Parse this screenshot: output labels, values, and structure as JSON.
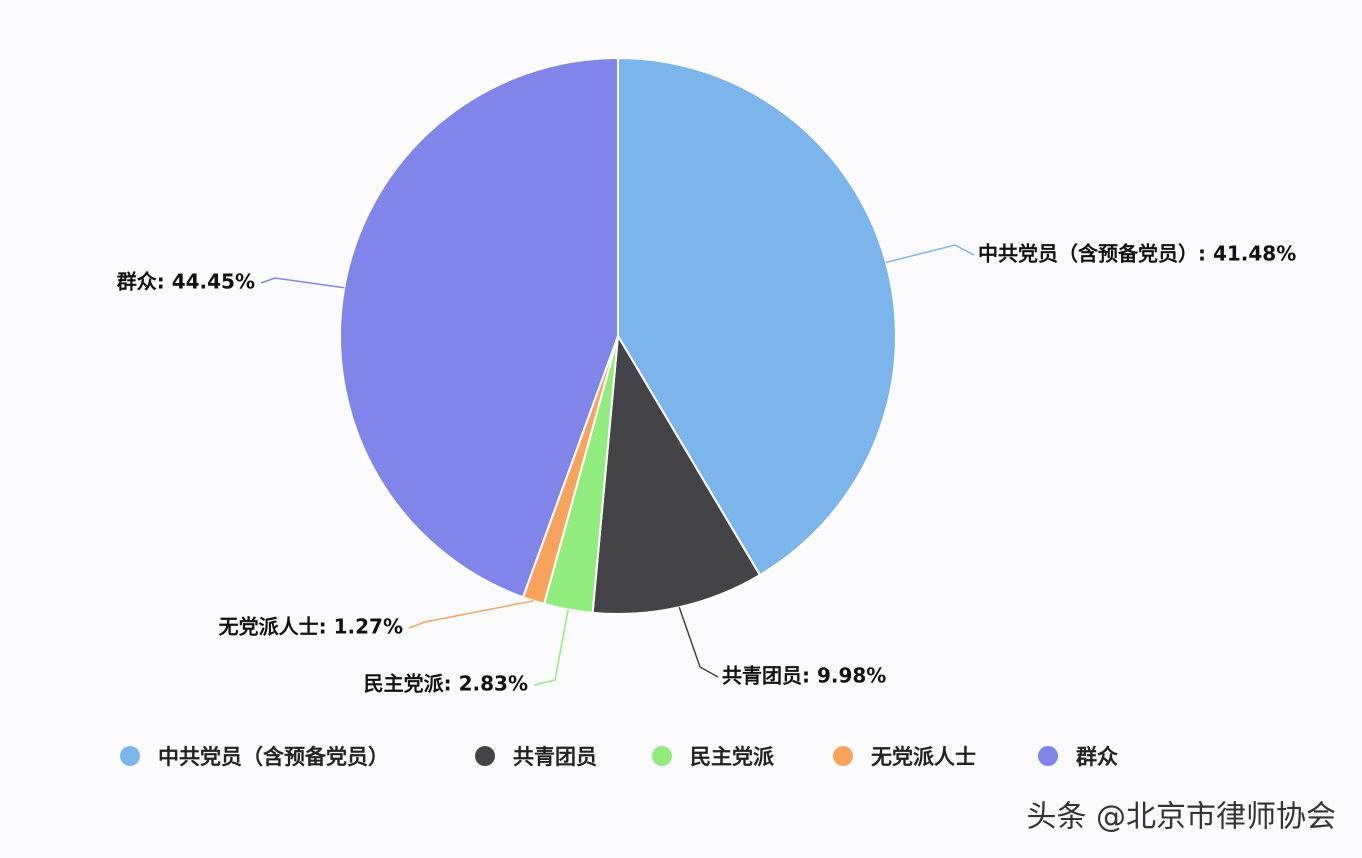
{
  "chart_data": {
    "type": "pie",
    "categories": [
      "中共党员（含预备党员）",
      "共青团员",
      "民主党派",
      "无党派人士",
      "群众"
    ],
    "values": [
      41.48,
      9.98,
      2.83,
      1.27,
      44.45
    ],
    "value_labels": [
      "中共党员（含预备党员）: 41.48%",
      "共青团员: 9.98%",
      "民主党派: 2.83%",
      "无党派人士: 1.27%",
      "群众: 44.45%"
    ],
    "colors": [
      "#7cb5ec",
      "#434348",
      "#90ed7d",
      "#f7a35c",
      "#8085e9"
    ],
    "legend": "bottom"
  },
  "watermark": "头条 @北京市律师协会"
}
